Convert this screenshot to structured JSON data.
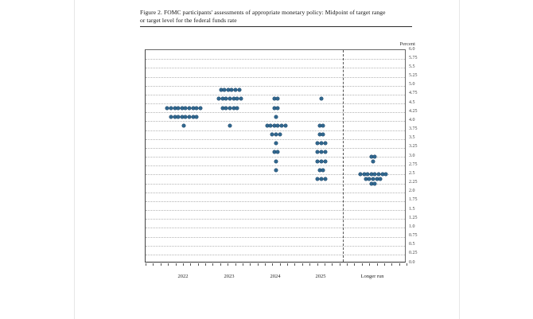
{
  "header": {
    "title_line1": "Figure 2. FOMC participants' assessments of appropriate monetary policy: Midpoint of target range",
    "title_line2": "or target level for the federal funds rate"
  },
  "chart_data": {
    "type": "scatter",
    "title": "Figure 2. FOMC participants' assessments of appropriate monetary policy: Midpoint of target range or target level for the federal funds rate",
    "ylabel": "Percent",
    "xlabel": "",
    "ylim": [
      0,
      6
    ],
    "ytick_step": 0.25,
    "grid": "dotted-horizontal",
    "legend_position": "none",
    "categories": [
      "2022",
      "2023",
      "2024",
      "2025",
      "Longer run"
    ],
    "separator_before": "Longer run",
    "dot_color": "#31688f",
    "dot_edge_color": "#1a4063",
    "series": [
      {
        "name": "2022",
        "dots": {
          "4.375": 10,
          "4.125": 8,
          "3.875": 1
        }
      },
      {
        "name": "2023",
        "dots": {
          "4.875": 6,
          "4.625": 7,
          "4.375": 5,
          "3.875": 1
        }
      },
      {
        "name": "2024",
        "dots": {
          "4.625": 2,
          "4.375": 2,
          "4.125": 1,
          "3.875": 6,
          "3.625": 3,
          "3.375": 1,
          "3.125": 2,
          "2.875": 1,
          "2.625": 1
        }
      },
      {
        "name": "2025",
        "dots": {
          "4.625": 1,
          "3.875": 2,
          "3.625": 2,
          "3.375": 3,
          "3.125": 3,
          "2.875": 3,
          "2.625": 2,
          "2.375": 3
        }
      },
      {
        "name": "Longer run",
        "dots": {
          "3.0": 2,
          "2.875": 1,
          "2.5": 8,
          "2.375": 5,
          "2.25": 2
        }
      }
    ]
  }
}
